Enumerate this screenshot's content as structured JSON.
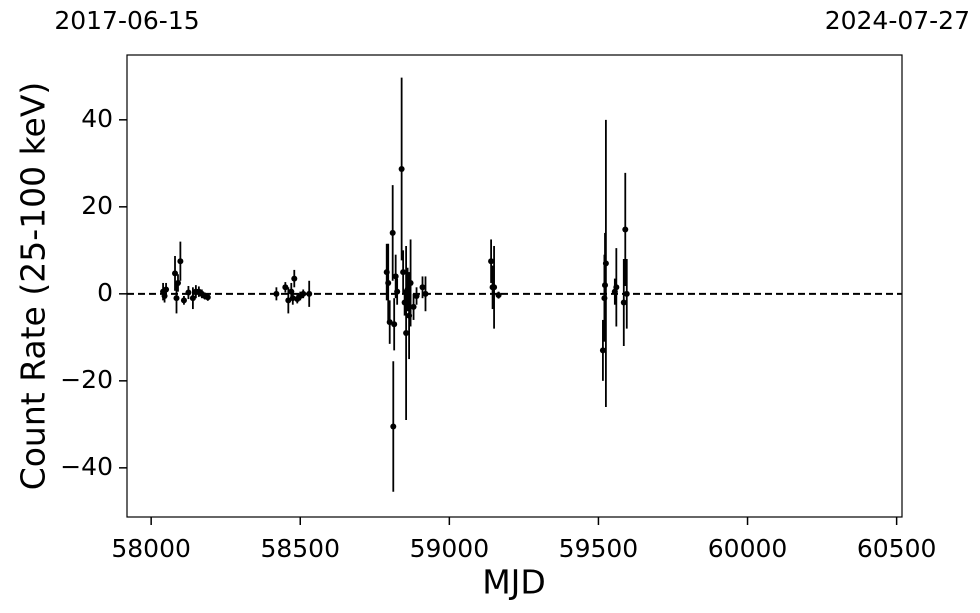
{
  "chart_data": {
    "type": "scatter",
    "x_label": "MJD",
    "y_label": "Count Rate (25-100 keV)",
    "xlim": [
      57919,
      60518
    ],
    "ylim": [
      -51.3,
      54.9
    ],
    "xticks": [
      58000,
      58500,
      59000,
      59500,
      60000,
      60500
    ],
    "yticks": [
      {
        "value": -40,
        "label": "−40"
      },
      {
        "value": -20,
        "label": "−20"
      },
      0,
      20,
      40
    ],
    "top_ticks": [
      {
        "value": 57919,
        "label": "2017-06-15"
      },
      {
        "value": 60518,
        "label": "2024-07-27"
      }
    ],
    "reference_line": 0,
    "series": [
      {
        "color": "#000000",
        "x": [
          58040,
          58045,
          58050,
          58080,
          58085,
          58090,
          58098,
          58110,
          58125,
          58140,
          58150,
          58160,
          58170,
          58180,
          58190,
          58420,
          58450,
          58460,
          58470,
          58475,
          58480,
          58490,
          58500,
          58510,
          58530,
          58790,
          58795,
          58800,
          58810,
          58812,
          58815,
          58820,
          58825,
          58840,
          58845,
          58850,
          58855,
          58860,
          58865,
          58870,
          58880,
          58890,
          58910,
          58920,
          59140,
          59145,
          59150,
          59165,
          59515,
          59520,
          59522,
          59525,
          59555,
          59560,
          59585,
          59590,
          59595
        ],
        "values": [
          0.5,
          -0.5,
          1,
          4.7,
          -1,
          2.5,
          7.5,
          -1.5,
          0.3,
          -1,
          0.5,
          0.5,
          0,
          -0.5,
          -0.8,
          0,
          1.5,
          -1.5,
          0.5,
          -1,
          3.5,
          -1.2,
          -0.5,
          0,
          0,
          5,
          2.5,
          -6.5,
          14,
          -30.5,
          -7,
          4,
          0.5,
          28.7,
          5,
          -2,
          -9,
          1,
          -5,
          2.5,
          -3,
          -0.5,
          1.5,
          0,
          7.5,
          1.5,
          1.5,
          -0.3,
          -13,
          -1,
          2,
          7,
          0.5,
          1.5,
          -2,
          14.8,
          0
        ],
        "errors": [
          2,
          1.5,
          1.5,
          4,
          3.5,
          2,
          4.5,
          1,
          1.5,
          2.5,
          1.5,
          1.2,
          1,
          0.8,
          0.8,
          1.5,
          1.2,
          3,
          2,
          1.5,
          2,
          1,
          1,
          1,
          3,
          6.5,
          9,
          5,
          11,
          15,
          6,
          5,
          3,
          21,
          5,
          3,
          20,
          5,
          10,
          10,
          3,
          2,
          2.5,
          4,
          5,
          5,
          9.5,
          0.8,
          7,
          10,
          12,
          33,
          3,
          9,
          10,
          13,
          8
        ]
      }
    ]
  }
}
